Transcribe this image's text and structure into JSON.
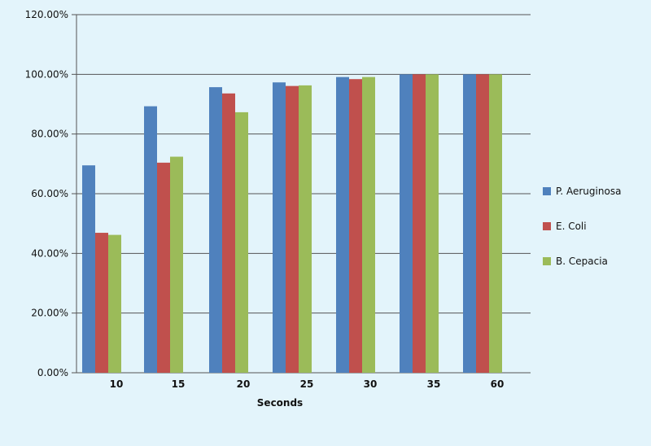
{
  "chart_data": {
    "type": "bar",
    "categories": [
      "10",
      "15",
      "20",
      "25",
      "30",
      "35",
      "60"
    ],
    "series": [
      {
        "name": "P. Aeruginosa",
        "color": "#4f81bd",
        "values": [
          69.5,
          89.3,
          95.7,
          97.3,
          99.1,
          100,
          100
        ]
      },
      {
        "name": "E. Coli",
        "color": "#c0504d",
        "values": [
          46.9,
          70.4,
          93.6,
          96.1,
          98.4,
          100,
          100
        ]
      },
      {
        "name": "B. Cepacia",
        "color": "#9bbb59",
        "values": [
          46.2,
          72.4,
          87.3,
          96.3,
          99.1,
          100,
          100
        ]
      }
    ],
    "xlabel": "Seconds",
    "ylabel": "",
    "ylim": [
      0,
      120
    ],
    "yticks": [
      "0.00%",
      "20.00%",
      "40.00%",
      "60.00%",
      "80.00%",
      "100.00%",
      "120.00%"
    ],
    "grid": true,
    "legend": "right"
  }
}
